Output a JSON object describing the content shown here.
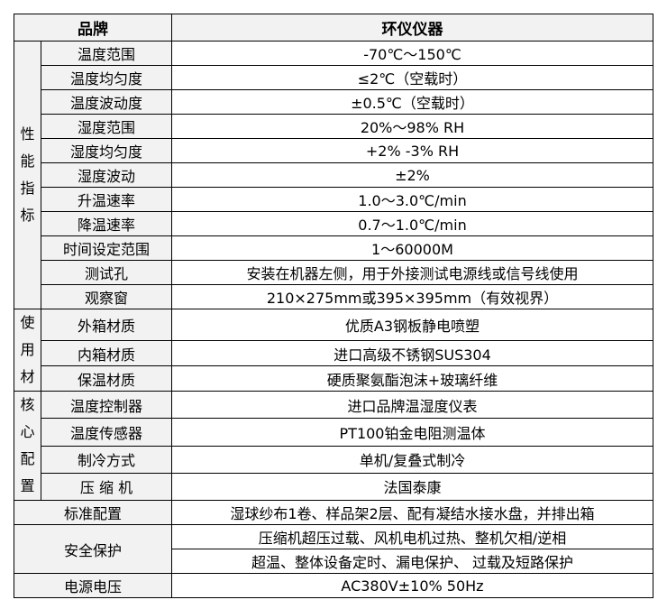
{
  "header": {
    "label": "品牌",
    "brand": "环仪仪器"
  },
  "groups": [
    {
      "label": "性能指标",
      "rows": [
        {
          "label": "温度范围",
          "value": "-70℃～150℃"
        },
        {
          "label": "温度均匀度",
          "value": "≤2℃（空载时）"
        },
        {
          "label": "温度波动度",
          "value": "±0.5℃（空载时）"
        },
        {
          "label": "湿度范围",
          "value": "20%～98% RH"
        },
        {
          "label": "湿度均匀度",
          "value": "+2% -3% RH"
        },
        {
          "label": "湿度波动",
          "value": "±2%"
        },
        {
          "label": "升温速率",
          "value": "1.0～3.0℃/min"
        },
        {
          "label": "降温速率",
          "value": "0.7～1.0℃/min"
        },
        {
          "label": "时间设定范围",
          "value": "1～60000M"
        },
        {
          "label": "测试孔",
          "value": "安装在机器左侧，用于外接测试电源线或信号线使用"
        },
        {
          "label": "观察窗",
          "value": "210×275mm或395×395mm（有效视界）"
        }
      ]
    },
    {
      "label": "使用材",
      "rows": [
        {
          "label": "外箱材质",
          "value": "优质A3钢板静电喷塑"
        },
        {
          "label": "内箱材质",
          "value": "进口高级不锈钢SUS304"
        },
        {
          "label": "保温材质",
          "value": "硬质聚氨酯泡沫+玻璃纤维"
        }
      ]
    },
    {
      "label": "核心配置",
      "rows": [
        {
          "label": "温度控制器",
          "value": "进口品牌温湿度仪表"
        },
        {
          "label": "温度传感器",
          "value": "PT100铂金电阻测温体"
        },
        {
          "label": "制冷方式",
          "value": "单机/复叠式制冷"
        },
        {
          "label": "压 缩 机",
          "value": "法国泰康"
        }
      ]
    }
  ],
  "footer_rows": [
    {
      "label": "标准配置",
      "values": [
        "湿球纱布1卷、样品架2层、配有凝结水接水盘，并排出箱"
      ]
    },
    {
      "label": "安全保护",
      "values": [
        "压缩机超压过载、风机电机过热、整机欠相/逆相",
        "超温、整体设备定时、漏电保护、 过载及短路保护"
      ]
    },
    {
      "label": "电源电压",
      "values": [
        "AC380V±10% 50Hz"
      ]
    }
  ]
}
